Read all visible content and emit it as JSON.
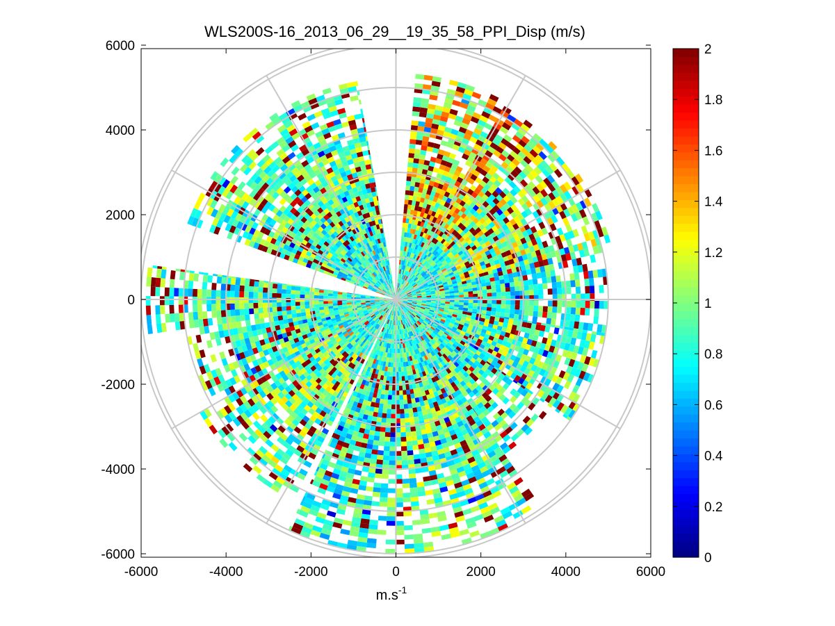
{
  "chart_data": {
    "type": "heatmap",
    "subtype": "polar-ppi",
    "title": "WLS200S-16_2013_06_29__19_35_58_PPI_Disp (m/s)",
    "xlabel": "m.s",
    "xlabel_sup": "-1",
    "ylabel": "",
    "xlim": [
      -6000,
      6000
    ],
    "ylim": [
      -6000,
      6000
    ],
    "xticks": [
      "-6000",
      "-4000",
      "-2000",
      "0",
      "2000",
      "4000",
      "6000"
    ],
    "yticks": [
      "6000",
      "4000",
      "2000",
      "0",
      "-2000",
      "-4000",
      "-6000"
    ],
    "range_rings": [
      1000,
      2000,
      3000,
      4000,
      5000,
      6000
    ],
    "max_range": 6100,
    "spokes_deg": [
      0,
      30,
      60,
      90,
      120,
      150,
      180,
      210,
      240,
      270,
      300,
      330
    ],
    "colorbar": {
      "min": 0,
      "max": 2,
      "ticks": [
        "2",
        "1.8",
        "1.6",
        "1.4",
        "1.2",
        "1",
        "0.8",
        "0.6",
        "0.4",
        "0.2",
        "0"
      ],
      "colormap": "jet"
    },
    "sectors": [
      {
        "az_from": 5,
        "az_to": 40,
        "max_range": 5300,
        "bias": 1.45
      },
      {
        "az_from": 40,
        "az_to": 75,
        "max_range": 5200,
        "bias": 1.25
      },
      {
        "az_from": 75,
        "az_to": 100,
        "max_range": 5000,
        "bias": 0.95
      },
      {
        "az_from": 100,
        "az_to": 125,
        "max_range": 5000,
        "bias": 1.1
      },
      {
        "az_from": 125,
        "az_to": 145,
        "max_range": 4400,
        "bias": 1.0
      },
      {
        "az_from": 145,
        "az_to": 178,
        "max_range": 6000,
        "bias": 1.1
      },
      {
        "az_from": 178,
        "az_to": 205,
        "max_range": 6000,
        "bias": 1.0
      },
      {
        "az_from": 207,
        "az_to": 240,
        "max_range": 5300,
        "bias": 1.15
      },
      {
        "az_from": 240,
        "az_to": 262,
        "max_range": 5000,
        "bias": 1.05
      },
      {
        "az_from": 262,
        "az_to": 278,
        "max_range": 5800,
        "bias": 1.05
      },
      {
        "az_from": 290,
        "az_to": 350,
        "max_range": 5200,
        "bias": 1.1
      }
    ]
  }
}
